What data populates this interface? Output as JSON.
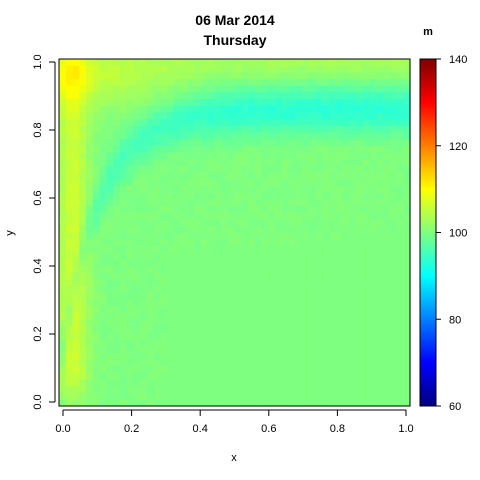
{
  "chart_data": {
    "type": "heatmap",
    "title": "06 Mar 2014",
    "subtitle": "Thursday",
    "xlabel": "x",
    "ylabel": "y",
    "xlim": [
      0,
      1
    ],
    "ylim": [
      0,
      1
    ],
    "x_ticks": [
      "0.0",
      "0.2",
      "0.4",
      "0.6",
      "0.8",
      "1.0"
    ],
    "y_ticks": [
      "0.0",
      "0.2",
      "0.4",
      "0.6",
      "0.8",
      "1.0"
    ],
    "colorbar": {
      "label": "m",
      "min": 60,
      "max": 140,
      "ticks": [
        "60",
        "80",
        "100",
        "120",
        "140"
      ],
      "palette": "jet"
    },
    "grid": false,
    "legend": "colorbar-right",
    "field_description": "Value ~100 over most of the domain; elevated values (~104-107) in a narrow band near the left edge (x below ~0.1) and along the top edge (y above ~0.85, x below ~0.5); reduced values (~92-95) in an arc band from near the left edge at mid-height sweeping up to a band at y ~0.75-0.9 across the right half."
  }
}
